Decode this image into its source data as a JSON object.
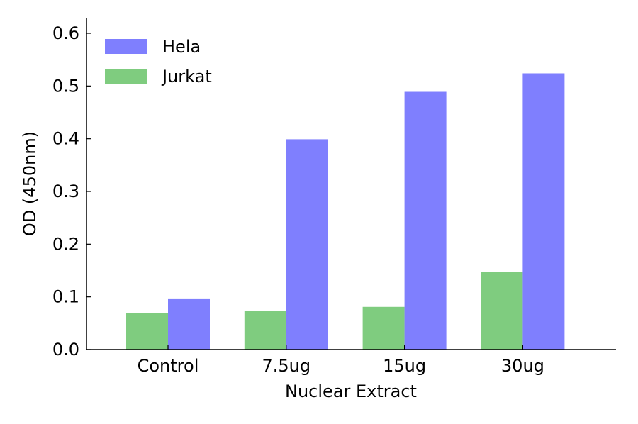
{
  "chart_data": {
    "type": "bar",
    "title": "",
    "xlabel": "Nuclear Extract",
    "ylabel": "OD (450nm)",
    "categories": [
      "Control",
      "7.5ug",
      "15ug",
      "30ug"
    ],
    "series": [
      {
        "name": "Jurkat",
        "color": "#7fcc7f",
        "values": [
          0.069,
          0.074,
          0.081,
          0.147
        ]
      },
      {
        "name": "Hela",
        "color": "#7f7ffe",
        "values": [
          0.097,
          0.399,
          0.489,
          0.524
        ]
      }
    ],
    "legend_order": [
      "Hela",
      "Jurkat"
    ],
    "legend_position": "top-left",
    "ylim": [
      0.0,
      0.6
    ],
    "yticks": [
      "0.0",
      "0.1",
      "0.2",
      "0.3",
      "0.4",
      "0.5",
      "0.6"
    ],
    "grid": false
  }
}
